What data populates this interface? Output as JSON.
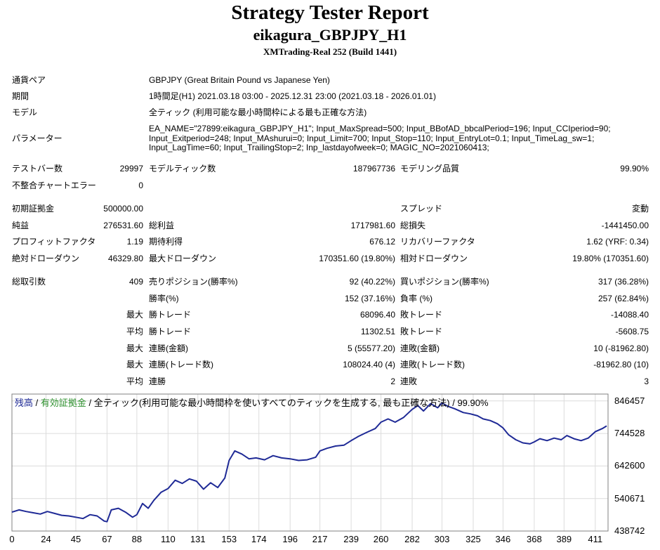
{
  "report": {
    "title": "Strategy Tester Report",
    "ea": "eikagura_GBPJPY_H1",
    "server_build": "XMTrading-Real 252 (Build 1441)"
  },
  "info": {
    "symbol_label": "通貨ペア",
    "symbol_value": "GBPJPY (Great Britain Pound vs Japanese Yen)",
    "period_label": "期間",
    "period_value": "1時間足(H1) 2021.03.18 03:00 - 2025.12.31 23:00 (2021.03.18 - 2026.01.01)",
    "model_label": "モデル",
    "model_value": "全ティック (利用可能な最小時間枠による最も正確な方法)",
    "params_label": "パラメーター",
    "params_lines": [
      "EA_NAME=\"27899:eikagura_GBPJPY_H1\"; Input_MaxSpread=500; Input_BBofAD_bbcalPeriod=196; Input_CCIperiod=90;",
      "Input_Exitperiod=248; Input_MAshurui=0; Input_Limit=700; Input_Stop=110; Input_EntryLot=0.1; Input_TimeLag_sw=1;",
      "Input_LagTime=60; Input_TrailingStop=2; Inp_lastdayofweek=0; MAGIC_NO=2021060413;"
    ]
  },
  "stats": {
    "bars_label": "テストバー数",
    "bars": "29997",
    "ticks_label": "モデルティック数",
    "ticks": "187967736",
    "quality_label": "モデリング品質",
    "quality": "99.90%",
    "mismatch_label": "不整合チャートエラー",
    "mismatch": "0",
    "deposit_label": "初期証拠金",
    "deposit": "500000.00",
    "spread_label": "スプレッド",
    "spread": "変動",
    "netprofit_label": "純益",
    "netprofit": "276531.60",
    "grossprofit_label": "総利益",
    "grossprofit": "1717981.60",
    "grossloss_label": "総損失",
    "grossloss": "-1441450.00",
    "pf_label": "プロフィットファクタ",
    "pf": "1.19",
    "expected_label": "期待利得",
    "expected": "676.12",
    "recovery_label": "リカバリーファクタ",
    "recovery": "1.62 (YRF: 0.34)",
    "absdd_label": "絶対ドローダウン",
    "absdd": "46329.80",
    "maxdd_label": "最大ドローダウン",
    "maxdd": "170351.60 (19.80%)",
    "reldd_label": "相対ドローダウン",
    "reldd": "19.80% (170351.60)",
    "trades_label": "総取引数",
    "trades": "409",
    "short_label": "売りポジション(勝率%)",
    "short": "92 (40.22%)",
    "long_label": "買いポジション(勝率%)",
    "long": "317 (36.28%)",
    "winrate_label": "勝率(%)",
    "winrate": "152 (37.16%)",
    "lossrate_label": "負率 (%)",
    "lossrate": "257 (62.84%)",
    "max_label": "最大",
    "avg_label": "平均",
    "win_trade_label": "勝トレード",
    "loss_trade_label": "敗トレード",
    "largest_win": "68096.40",
    "largest_loss": "-14088.40",
    "avg_win": "11302.51",
    "avg_loss": "-5608.75",
    "cons_wins_amt_label": "連勝(金額)",
    "cons_wins_amt": "5 (55577.20)",
    "cons_losses_amt_label": "連敗(金額)",
    "cons_losses_amt": "10 (-81962.80)",
    "cons_wins_cnt_label": "連勝(トレード数)",
    "cons_wins_cnt": "108024.40 (4)",
    "cons_losses_cnt_label": "連敗(トレード数)",
    "cons_losses_cnt": "-81962.80 (10)",
    "avg_wins_label": "連勝",
    "avg_wins": "2",
    "avg_losses_label": "連敗",
    "avg_losses": "3"
  },
  "chart_legend": {
    "balance": "残高",
    "sep1": " / ",
    "equity": "有効証拠金",
    "rest": " / 全ティック(利用可能な最小時間枠を使いすべてのティックを生成する, 最も正確な方法) / 99.90%"
  },
  "chart_data": {
    "type": "line",
    "title": "",
    "xlabel": "",
    "ylabel": "",
    "x_ticks": [
      "0",
      "24",
      "45",
      "67",
      "88",
      "110",
      "131",
      "153",
      "174",
      "196",
      "217",
      "239",
      "260",
      "282",
      "303",
      "325",
      "346",
      "368",
      "389",
      "411"
    ],
    "y_ticks": [
      "846457",
      "744528",
      "642600",
      "540671",
      "438742"
    ],
    "xlim": [
      0,
      420
    ],
    "ylim": [
      438742,
      868000
    ],
    "series": [
      {
        "x": [
          0,
          5,
          10,
          15,
          20,
          25,
          30,
          35,
          40,
          45,
          50,
          55,
          60,
          65,
          67,
          70,
          75,
          80,
          85,
          88,
          92,
          96,
          100,
          105,
          110,
          115,
          120,
          125,
          130,
          135,
          140,
          145,
          150,
          153,
          157,
          162,
          167,
          172,
          178,
          184,
          190,
          196,
          202,
          208,
          214,
          217,
          222,
          228,
          234,
          239,
          244,
          250,
          256,
          260,
          265,
          270,
          276,
          282,
          286,
          290,
          295,
          300,
          303,
          307,
          312,
          318,
          323,
          328,
          332,
          337,
          342,
          346,
          350,
          355,
          360,
          365,
          368,
          372,
          377,
          382,
          387,
          391,
          396,
          401,
          406,
          411,
          416,
          419
        ],
        "y": [
          498000,
          505000,
          500000,
          496000,
          492000,
          500000,
          494000,
          488000,
          486000,
          482000,
          478000,
          490000,
          486000,
          470000,
          468000,
          505000,
          510000,
          498000,
          482000,
          490000,
          525000,
          510000,
          535000,
          560000,
          572000,
          598000,
          588000,
          602000,
          595000,
          570000,
          590000,
          575000,
          605000,
          660000,
          690000,
          680000,
          665000,
          668000,
          662000,
          675000,
          668000,
          665000,
          660000,
          662000,
          670000,
          690000,
          698000,
          705000,
          708000,
          722000,
          735000,
          748000,
          760000,
          780000,
          790000,
          780000,
          795000,
          820000,
          832000,
          815000,
          838000,
          825000,
          840000,
          830000,
          822000,
          810000,
          806000,
          800000,
          790000,
          785000,
          775000,
          762000,
          740000,
          725000,
          715000,
          712000,
          718000,
          728000,
          722000,
          730000,
          725000,
          738000,
          728000,
          722000,
          730000,
          750000,
          760000,
          768000
        ]
      }
    ],
    "colors": {
      "line": "#1f2a96",
      "grid": "#dcdcdc",
      "frame": "#808080"
    }
  }
}
